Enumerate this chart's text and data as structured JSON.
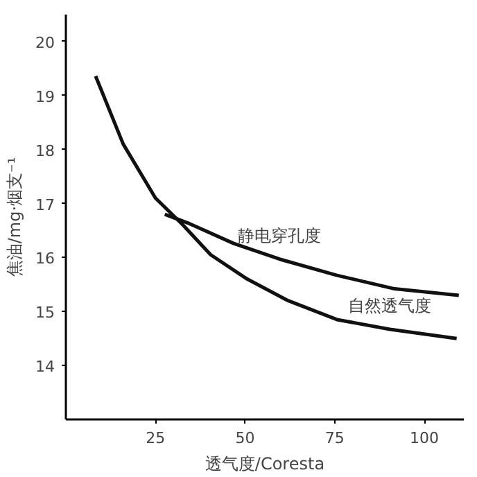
{
  "chart_data": {
    "type": "line",
    "xlabel": "透气度/Coresta",
    "ylabel": "焦油/mg·烟支⁻¹",
    "xlim": [
      0,
      111
    ],
    "ylim": [
      13,
      20.5
    ],
    "xticks": [
      25,
      50,
      75,
      100
    ],
    "yticks": [
      14,
      15,
      16,
      17,
      18,
      19,
      20
    ],
    "grid": false,
    "marker": "none",
    "line_style": "solid",
    "series": [
      {
        "name": "自然透气度",
        "color": "#111111",
        "x": [
          8.3,
          16,
          25,
          32.7,
          40.4,
          50.6,
          62,
          75.6,
          90.4,
          109
        ],
        "values": [
          19.36,
          18.1,
          17.1,
          16.6,
          16.05,
          15.6,
          15.2,
          14.85,
          14.67,
          14.5
        ]
      },
      {
        "name": "静电穿孔度",
        "color": "#111111",
        "x": [
          27.6,
          34,
          46.8,
          59.6,
          75.6,
          91.7,
          109.6
        ],
        "values": [
          16.8,
          16.64,
          16.26,
          15.97,
          15.67,
          15.42,
          15.3
        ]
      }
    ]
  }
}
